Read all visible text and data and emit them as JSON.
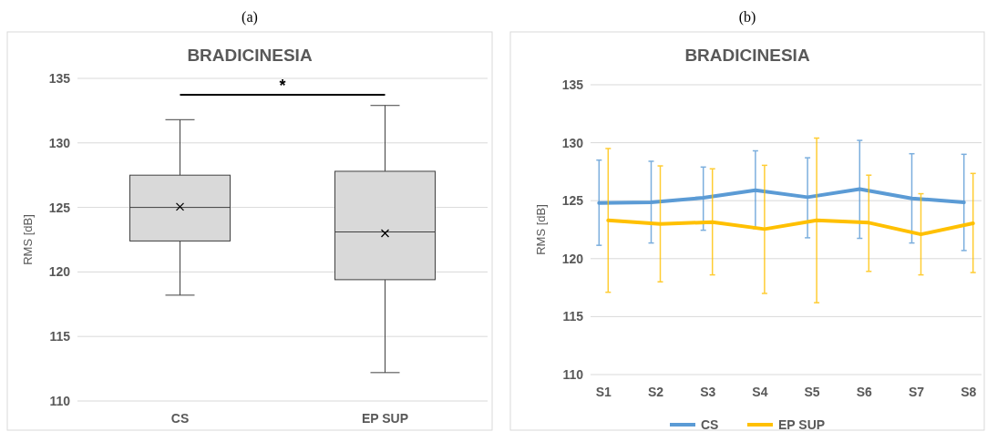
{
  "chart_data": [
    {
      "type": "box",
      "title": "BRADICINESIA",
      "subtitle": "(a)",
      "ylabel": "RMS [dB]",
      "categories": [
        "CS",
        "EP SUP"
      ],
      "boxes": [
        {
          "low": 118.2,
          "q1": 122.4,
          "median": 125.0,
          "q3": 127.5,
          "high": 131.8,
          "mean": 125.05
        },
        {
          "low": 112.2,
          "q1": 119.4,
          "median": 123.1,
          "q3": 127.8,
          "high": 132.9,
          "mean": 123.0
        }
      ],
      "color": "#d9d9d9",
      "ylim": [
        110,
        135
      ],
      "yticks": [
        110,
        115,
        120,
        125,
        130,
        135
      ],
      "grid": "y",
      "annotations": [
        "*"
      ]
    },
    {
      "type": "line",
      "title": "BRADICINESIA",
      "subtitle": "(b)",
      "ylabel": "RMS [dB]",
      "categories": [
        "S1",
        "S2",
        "S3",
        "S4",
        "S5",
        "S6",
        "S7",
        "S8"
      ],
      "series": [
        {
          "name": "CS",
          "color": "#5b9bd5",
          "values": [
            124.8,
            124.85,
            125.25,
            125.9,
            125.3,
            126.0,
            125.2,
            124.85
          ],
          "errors": [
            [
              121.15,
              128.5
            ],
            [
              121.35,
              128.4
            ],
            [
              122.45,
              127.9
            ],
            [
              122.6,
              129.3
            ],
            [
              121.8,
              128.7
            ],
            [
              121.75,
              130.2
            ],
            [
              121.35,
              129.05
            ],
            [
              120.7,
              129.0
            ]
          ]
        },
        {
          "name": "EP SUP",
          "color": "#ffc000",
          "values": [
            123.3,
            123.0,
            123.15,
            122.55,
            123.3,
            123.1,
            122.1,
            123.05
          ],
          "errors": [
            [
              117.1,
              129.5
            ],
            [
              118.0,
              128.0
            ],
            [
              118.6,
              127.75
            ],
            [
              117.0,
              128.05
            ],
            [
              116.2,
              130.4
            ],
            [
              118.9,
              127.2
            ],
            [
              118.6,
              125.6
            ],
            [
              118.8,
              127.35
            ]
          ]
        }
      ],
      "ylim": [
        110,
        135
      ],
      "yticks": [
        110,
        115,
        120,
        125,
        130,
        135
      ],
      "grid": "y",
      "legend": "bottom",
      "marker": "none",
      "line_style": "solid"
    }
  ]
}
